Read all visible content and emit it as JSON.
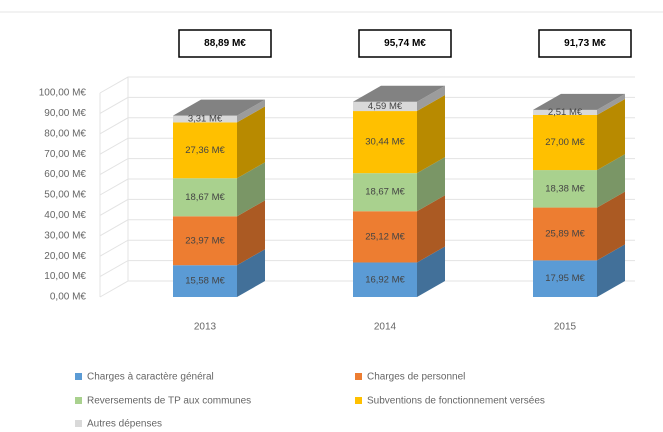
{
  "chart_data": {
    "type": "bar3d_stacked",
    "categories": [
      "2013",
      "2014",
      "2015"
    ],
    "series": [
      {
        "name": "Charges à caractère général",
        "color": "#5b9bd5",
        "values": [
          15.58,
          16.92,
          17.95
        ],
        "value_labels": [
          "15,58 M€",
          "16,92 M€",
          "17,95 M€"
        ]
      },
      {
        "name": "Charges de personnel",
        "color": "#ed7d31",
        "values": [
          23.97,
          25.12,
          25.89
        ],
        "value_labels": [
          "23,97 M€",
          "25,12 M€",
          "25,89 M€"
        ]
      },
      {
        "name": "Reversements de TP aux communes",
        "color": "#a9d18e",
        "values": [
          18.67,
          18.67,
          18.38
        ],
        "value_labels": [
          "18,67 M€",
          "18,67 M€",
          "18,38 M€"
        ]
      },
      {
        "name": "Subventions de fonctionnement versées",
        "color": "#ffc000",
        "values": [
          27.36,
          30.44,
          27.0
        ],
        "value_labels": [
          "27,36 M€",
          "30,44 M€",
          "27,00 M€"
        ]
      },
      {
        "name": "Autres dépenses",
        "color": "#d9d9d9",
        "values": [
          3.31,
          4.59,
          2.51
        ],
        "value_labels": [
          "3,31 M€",
          "4,59 M€",
          "2,51 M€"
        ]
      }
    ],
    "annotations": [
      "88,89 M€",
      "95,74 M€",
      "91,73 M€"
    ],
    "ylim": [
      0,
      100
    ],
    "yticks": [
      {
        "value": 0,
        "label": "0,00 M€"
      },
      {
        "value": 10,
        "label": "10,00 M€"
      },
      {
        "value": 20,
        "label": "20,00 M€"
      },
      {
        "value": 30,
        "label": "30,00 M€"
      },
      {
        "value": 40,
        "label": "40,00 M€"
      },
      {
        "value": 50,
        "label": "50,00 M€"
      },
      {
        "value": 60,
        "label": "60,00 M€"
      },
      {
        "value": 70,
        "label": "70,00 M€"
      },
      {
        "value": 80,
        "label": "80,00 M€"
      },
      {
        "value": 90,
        "label": "90,00 M€"
      },
      {
        "value": 100,
        "label": "100,00 M€"
      }
    ],
    "grid": true
  }
}
